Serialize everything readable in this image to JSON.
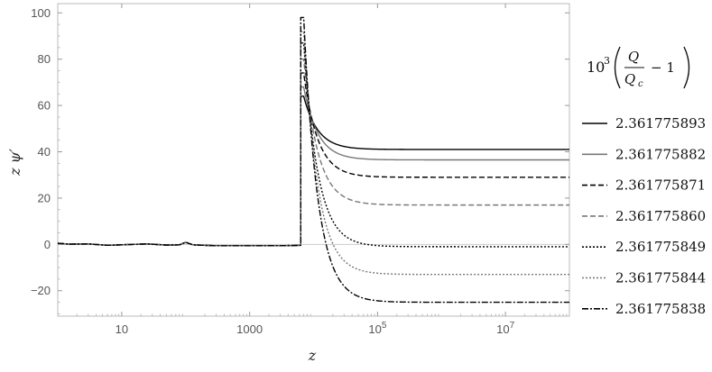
{
  "chart_data": {
    "type": "line",
    "xlabel": "z",
    "ylabel": "z ψ′",
    "x_scale": "log",
    "xlim": [
      1,
      100000000.0
    ],
    "ylim": [
      -31,
      104
    ],
    "x_ticks": [
      {
        "value": 10,
        "label": "10"
      },
      {
        "value": 1000,
        "label": "1000"
      },
      {
        "value": 100000,
        "label": "10",
        "exp": "5"
      },
      {
        "value": 10000000,
        "label": "10",
        "exp": "7"
      }
    ],
    "y_ticks": [
      {
        "value": -20,
        "label": "−20"
      },
      {
        "value": 0,
        "label": "0"
      },
      {
        "value": 20,
        "label": "20"
      },
      {
        "value": 40,
        "label": "40"
      },
      {
        "value": 60,
        "label": "60"
      },
      {
        "value": 80,
        "label": "80"
      },
      {
        "value": 100,
        "label": "100"
      }
    ],
    "grid": false,
    "legend_placement": "right",
    "legend_title": "10^3 (Q/Q_c − 1)",
    "legend_title_parts": {
      "base": "10",
      "exp": "3",
      "num": "Q",
      "den": "Q",
      "den_sub": "c",
      "minus_one": "− 1"
    },
    "early_profile": [
      [
        1,
        0.5
      ],
      [
        1.5,
        0.1
      ],
      [
        3,
        0.2
      ],
      [
        6,
        -0.4
      ],
      [
        12,
        -0.1
      ],
      [
        25,
        0.2
      ],
      [
        50,
        -0.3
      ],
      [
        80,
        -0.2
      ],
      [
        100,
        0.9
      ],
      [
        130,
        -0.2
      ],
      [
        300,
        -0.6
      ],
      [
        1000,
        -0.6
      ],
      [
        5000,
        -0.5
      ],
      [
        6300,
        -0.4
      ]
    ],
    "series": [
      {
        "name": "2.361775893",
        "peak": 64,
        "plateau": 41,
        "color": "#000000",
        "dash": ""
      },
      {
        "name": "2.361775882",
        "peak": 68,
        "plateau": 36.5,
        "color": "#777777",
        "dash": ""
      },
      {
        "name": "2.361775871",
        "peak": 74,
        "plateau": 29,
        "color": "#000000",
        "dash": "6,3"
      },
      {
        "name": "2.361775860",
        "peak": 80,
        "plateau": 17,
        "color": "#777777",
        "dash": "6,3"
      },
      {
        "name": "2.361775849",
        "peak": 87,
        "plateau": -1,
        "color": "#000000",
        "dash": "2,2"
      },
      {
        "name": "2.361775844",
        "peak": 92,
        "plateau": -13,
        "color": "#777777",
        "dash": "2,2"
      },
      {
        "name": "2.361775838",
        "peak": 98,
        "plateau": -25,
        "color": "#000000",
        "dash": "7,2,2,2"
      }
    ]
  }
}
